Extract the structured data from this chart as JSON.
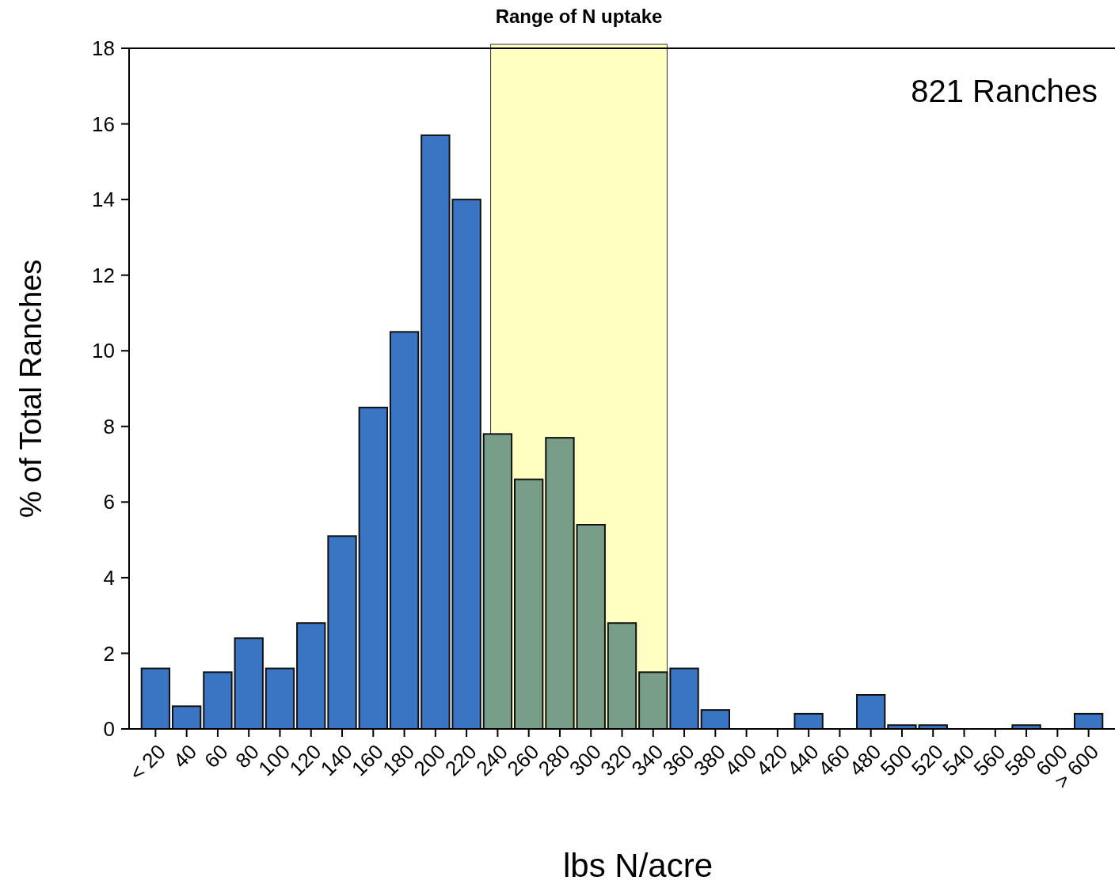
{
  "chart_data": {
    "type": "bar",
    "xlabel": "lbs N/acre",
    "ylabel": "% of Total Ranches",
    "categories": [
      "< 20",
      "40",
      "60",
      "80",
      "100",
      "120",
      "140",
      "160",
      "180",
      "200",
      "220",
      "240",
      "260",
      "280",
      "300",
      "320",
      "340",
      "360",
      "380",
      "400",
      "420",
      "440",
      "460",
      "480",
      "500",
      "520",
      "540",
      "560",
      "580",
      "600",
      "> 600"
    ],
    "values": [
      1.6,
      0.6,
      1.5,
      2.4,
      1.6,
      2.8,
      5.1,
      8.5,
      10.5,
      15.7,
      14.0,
      7.8,
      6.6,
      7.7,
      5.4,
      2.8,
      1.5,
      1.6,
      0.5,
      0,
      0,
      0.4,
      0,
      0.9,
      0.1,
      0.1,
      0,
      0,
      0.1,
      0,
      0.4
    ],
    "colors": [
      "#3a75c4",
      "#3a75c4",
      "#3a75c4",
      "#3a75c4",
      "#3a75c4",
      "#3a75c4",
      "#3a75c4",
      "#3a75c4",
      "#3a75c4",
      "#3a75c4",
      "#3a75c4",
      "#789e8a",
      "#789e8a",
      "#789e8a",
      "#789e8a",
      "#789e8a",
      "#789e8a",
      "#3a75c4",
      "#3a75c4",
      "#3a75c4",
      "#3a75c4",
      "#3a75c4",
      "#3a75c4",
      "#3a75c4",
      "#3a75c4",
      "#3a75c4",
      "#3a75c4",
      "#3a75c4",
      "#3a75c4",
      "#3a75c4",
      "#3a75c4"
    ],
    "ylim": [
      0,
      18
    ],
    "yticks": [
      0,
      2,
      4,
      6,
      8,
      10,
      12,
      14,
      16,
      18
    ],
    "bands": [
      {
        "axis": "x",
        "from": "240",
        "to": "340",
        "label": "Range of N uptake",
        "color": "#ffff99"
      }
    ],
    "annotations": [
      "821 Ranches"
    ],
    "grid": false
  }
}
